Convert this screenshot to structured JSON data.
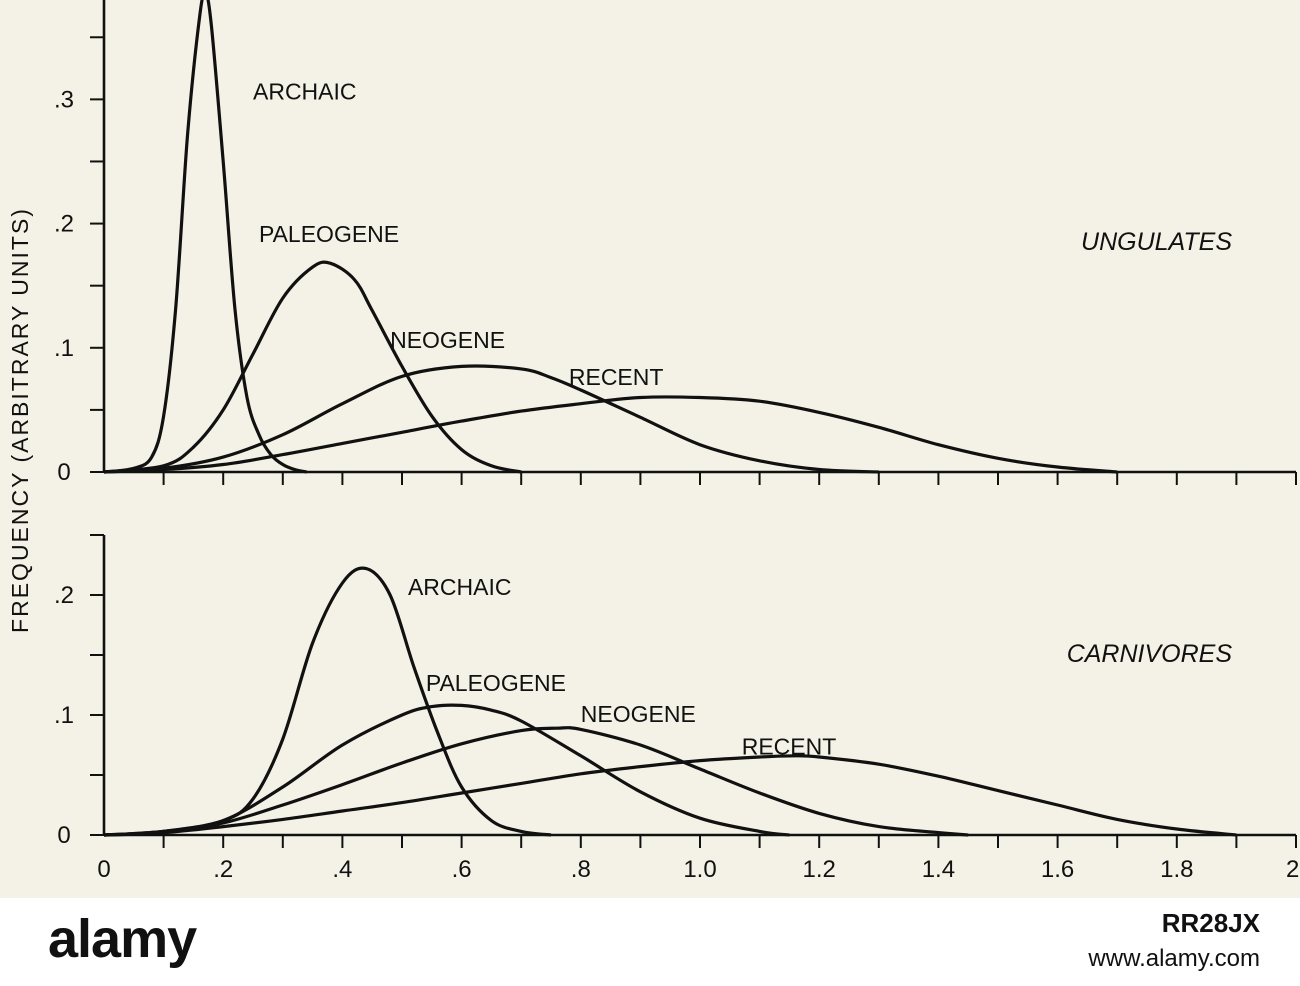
{
  "chart_data": [
    {
      "type": "line",
      "title": "UNGULATES",
      "xlabel": "",
      "ylabel": "FREQUENCY (ARBITRARY UNITS)",
      "xlim": [
        0,
        2.0
      ],
      "ylim": [
        0,
        0.38
      ],
      "yticks": [
        0,
        0.05,
        0.1,
        0.15,
        0.2,
        0.25,
        0.3,
        0.35
      ],
      "ytick_labels": [
        "0",
        "",
        ".1",
        "",
        ".2",
        "",
        ".3",
        ""
      ],
      "grid": false,
      "series": [
        {
          "name": "ARCHAIC",
          "label_at": [
            0.25,
            0.3
          ],
          "x": [
            0,
            0.05,
            0.08,
            0.1,
            0.12,
            0.14,
            0.16,
            0.17,
            0.18,
            0.2,
            0.22,
            0.24,
            0.26,
            0.28,
            0.3,
            0.32,
            0.34
          ],
          "y": [
            0,
            0.003,
            0.012,
            0.045,
            0.13,
            0.27,
            0.365,
            0.385,
            0.36,
            0.25,
            0.13,
            0.06,
            0.03,
            0.014,
            0.006,
            0.002,
            0
          ]
        },
        {
          "name": "PALEOGENE",
          "label_at": [
            0.26,
            0.185
          ],
          "x": [
            0,
            0.1,
            0.15,
            0.2,
            0.25,
            0.3,
            0.35,
            0.38,
            0.42,
            0.45,
            0.5,
            0.55,
            0.6,
            0.65,
            0.7
          ],
          "y": [
            0,
            0.005,
            0.02,
            0.05,
            0.095,
            0.14,
            0.165,
            0.168,
            0.155,
            0.13,
            0.085,
            0.045,
            0.018,
            0.005,
            0
          ]
        },
        {
          "name": "NEOGENE",
          "label_at": [
            0.48,
            0.1
          ],
          "x": [
            0,
            0.1,
            0.2,
            0.3,
            0.4,
            0.5,
            0.6,
            0.7,
            0.75,
            0.8,
            0.9,
            1.0,
            1.1,
            1.2,
            1.3
          ],
          "y": [
            0,
            0.003,
            0.012,
            0.03,
            0.055,
            0.077,
            0.085,
            0.083,
            0.076,
            0.066,
            0.044,
            0.022,
            0.009,
            0.002,
            0
          ]
        },
        {
          "name": "RECENT",
          "label_at": [
            0.78,
            0.07
          ],
          "x": [
            0,
            0.1,
            0.2,
            0.3,
            0.4,
            0.5,
            0.6,
            0.7,
            0.8,
            0.9,
            1.0,
            1.1,
            1.2,
            1.3,
            1.4,
            1.5,
            1.6,
            1.7
          ],
          "y": [
            0,
            0.002,
            0.006,
            0.014,
            0.023,
            0.032,
            0.041,
            0.049,
            0.055,
            0.06,
            0.06,
            0.057,
            0.048,
            0.036,
            0.022,
            0.011,
            0.004,
            0
          ]
        }
      ]
    },
    {
      "type": "line",
      "title": "CARNIVORES",
      "xlabel": "",
      "ylabel": "FREQUENCY (ARBITRARY UNITS)",
      "xlim": [
        0,
        2.0
      ],
      "ylim": [
        0,
        0.25
      ],
      "yticks": [
        0,
        0.05,
        0.1,
        0.15,
        0.2,
        0.25
      ],
      "ytick_labels": [
        "0",
        "",
        ".1",
        "",
        ".2",
        ""
      ],
      "xticks": [
        0,
        0.2,
        0.4,
        0.6,
        0.8,
        1.0,
        1.2,
        1.4,
        1.6,
        1.8,
        2.0
      ],
      "xtick_labels": [
        "0",
        ".2",
        ".4",
        ".6",
        ".8",
        "1.0",
        "1.2",
        "1.4",
        "1.6",
        "1.8",
        "2."
      ],
      "grid": false,
      "series": [
        {
          "name": "ARCHAIC",
          "label_at": [
            0.51,
            0.2
          ],
          "x": [
            0,
            0.1,
            0.2,
            0.25,
            0.3,
            0.35,
            0.4,
            0.44,
            0.48,
            0.52,
            0.56,
            0.6,
            0.65,
            0.7,
            0.75
          ],
          "y": [
            0,
            0.003,
            0.012,
            0.03,
            0.08,
            0.16,
            0.21,
            0.222,
            0.2,
            0.14,
            0.085,
            0.04,
            0.012,
            0.003,
            0
          ]
        },
        {
          "name": "PALEOGENE",
          "label_at": [
            0.54,
            0.12
          ],
          "x": [
            0,
            0.1,
            0.2,
            0.3,
            0.4,
            0.5,
            0.55,
            0.6,
            0.65,
            0.7,
            0.8,
            0.9,
            1.0,
            1.1,
            1.15
          ],
          "y": [
            0,
            0.003,
            0.012,
            0.04,
            0.075,
            0.1,
            0.107,
            0.108,
            0.104,
            0.095,
            0.066,
            0.036,
            0.014,
            0.003,
            0
          ]
        },
        {
          "name": "NEOGENE",
          "label_at": [
            0.8,
            0.094
          ],
          "x": [
            0,
            0.1,
            0.2,
            0.3,
            0.4,
            0.5,
            0.6,
            0.7,
            0.76,
            0.8,
            0.9,
            1.0,
            1.1,
            1.2,
            1.3,
            1.4,
            1.45
          ],
          "y": [
            0,
            0.002,
            0.01,
            0.025,
            0.042,
            0.06,
            0.076,
            0.087,
            0.089,
            0.088,
            0.075,
            0.055,
            0.035,
            0.018,
            0.007,
            0.002,
            0
          ]
        },
        {
          "name": "RECENT",
          "label_at": [
            1.07,
            0.067
          ],
          "x": [
            0,
            0.1,
            0.2,
            0.3,
            0.4,
            0.5,
            0.6,
            0.7,
            0.8,
            0.9,
            1.0,
            1.1,
            1.16,
            1.2,
            1.3,
            1.4,
            1.5,
            1.6,
            1.7,
            1.8,
            1.9
          ],
          "y": [
            0,
            0.002,
            0.007,
            0.013,
            0.02,
            0.027,
            0.035,
            0.043,
            0.051,
            0.057,
            0.062,
            0.065,
            0.066,
            0.065,
            0.059,
            0.049,
            0.037,
            0.025,
            0.013,
            0.005,
            0
          ]
        }
      ]
    }
  ],
  "watermark": {
    "brand": "alamy",
    "image_id": "RR28JX",
    "site": "www.alamy.com"
  }
}
